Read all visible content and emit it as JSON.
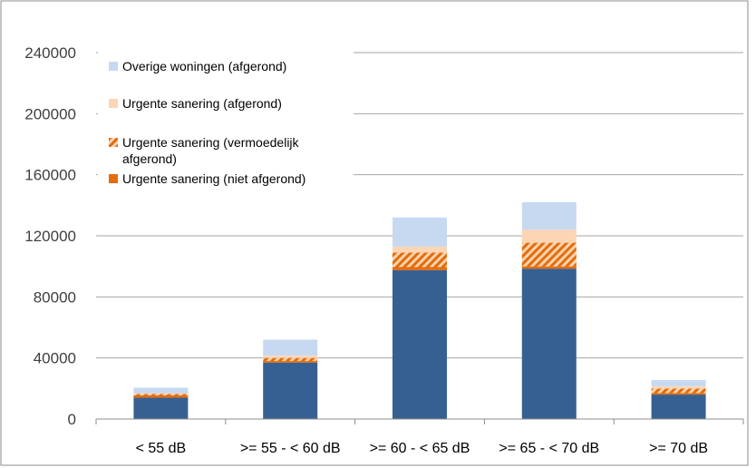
{
  "chart_data": {
    "type": "bar",
    "stacked": true,
    "categories": [
      "< 55 dB",
      ">= 55 - < 60 dB",
      ">= 60 - < 65 dB",
      ">= 65 - < 70 dB",
      ">= 70 dB"
    ],
    "series": [
      {
        "name": "",
        "color": "#376092",
        "pattern": "solid",
        "values": [
          14000,
          37000,
          97500,
          98500,
          16000
        ]
      },
      {
        "name": "Urgente sanering (niet afgerond)",
        "color": "#e46c0a",
        "pattern": "solid",
        "values": [
          1500,
          1000,
          2000,
          1500,
          1000
        ]
      },
      {
        "name": "Urgente sanering (vermoedelijk afgerond)",
        "color": "#e46c0a",
        "pattern": "hatched",
        "values": [
          1000,
          2000,
          9500,
          15500,
          3000
        ]
      },
      {
        "name": "Urgente sanering (afgerond)",
        "color": "#fcd5b5",
        "pattern": "solid",
        "values": [
          500,
          1500,
          4000,
          8500,
          1500
        ]
      },
      {
        "name": "Overige woningen (afgerond)",
        "color": "#c6d9f1",
        "pattern": "solid",
        "values": [
          3500,
          10500,
          19000,
          18000,
          4000
        ]
      }
    ],
    "legend_order": [
      4,
      3,
      2,
      1
    ],
    "title": "",
    "xlabel": "",
    "ylabel": "",
    "ylim": [
      0,
      240000
    ],
    "yticks": [
      0,
      40000,
      80000,
      120000,
      160000,
      200000,
      240000
    ],
    "grid": true,
    "legend_placement": "top-left"
  }
}
